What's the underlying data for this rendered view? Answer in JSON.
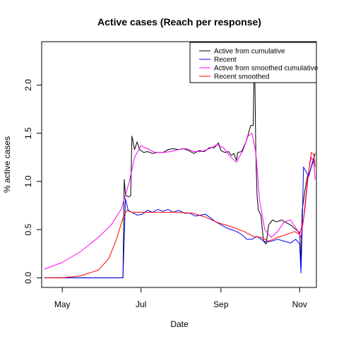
{
  "chart_data": {
    "type": "line",
    "title": "Active cases (Reach per response)",
    "xlabel": "Date",
    "ylabel": "% active cases",
    "x_domain": [
      "2020-04-15",
      "2020-11-14"
    ],
    "ylim": [
      -0.1,
      2.45
    ],
    "x_ticks": [
      {
        "date": "2020-05-01",
        "label": "May"
      },
      {
        "date": "2020-07-01",
        "label": "Jul"
      },
      {
        "date": "2020-09-01",
        "label": "Sep"
      },
      {
        "date": "2020-11-01",
        "label": "Nov"
      }
    ],
    "y_ticks": [
      {
        "value": 0.0,
        "label": "0.0"
      },
      {
        "value": 0.5,
        "label": "0.5"
      },
      {
        "value": 1.0,
        "label": "1.0"
      },
      {
        "value": 1.5,
        "label": "1.5"
      },
      {
        "value": 2.0,
        "label": "2.0"
      }
    ],
    "legend_position": "top-right",
    "grid": false,
    "series": [
      {
        "name": "Active from cumulative",
        "color": "#000000",
        "points": [
          [
            "2020-04-17",
            0.0
          ],
          [
            "2020-06-17",
            0.0
          ],
          [
            "2020-06-18",
            1.02
          ],
          [
            "2020-06-19",
            0.86
          ],
          [
            "2020-06-21",
            0.84
          ],
          [
            "2020-06-23",
            0.85
          ],
          [
            "2020-06-24",
            1.47
          ],
          [
            "2020-06-26",
            1.33
          ],
          [
            "2020-06-28",
            1.41
          ],
          [
            "2020-06-30",
            1.33
          ],
          [
            "2020-07-03",
            1.3
          ],
          [
            "2020-07-06",
            1.31
          ],
          [
            "2020-07-10",
            1.29
          ],
          [
            "2020-07-14",
            1.3
          ],
          [
            "2020-07-18",
            1.3
          ],
          [
            "2020-07-22",
            1.33
          ],
          [
            "2020-07-26",
            1.34
          ],
          [
            "2020-07-30",
            1.33
          ],
          [
            "2020-08-03",
            1.34
          ],
          [
            "2020-08-07",
            1.32
          ],
          [
            "2020-08-11",
            1.29
          ],
          [
            "2020-08-15",
            1.32
          ],
          [
            "2020-08-19",
            1.31
          ],
          [
            "2020-08-23",
            1.35
          ],
          [
            "2020-08-27",
            1.35
          ],
          [
            "2020-08-30",
            1.4
          ],
          [
            "2020-09-01",
            1.32
          ],
          [
            "2020-09-04",
            1.3
          ],
          [
            "2020-09-07",
            1.31
          ],
          [
            "2020-09-09",
            1.27
          ],
          [
            "2020-09-11",
            1.29
          ],
          [
            "2020-09-13",
            1.22
          ],
          [
            "2020-09-14",
            1.3
          ],
          [
            "2020-09-17",
            1.31
          ],
          [
            "2020-09-20",
            1.4
          ],
          [
            "2020-09-22",
            1.48
          ],
          [
            "2020-09-24",
            1.58
          ],
          [
            "2020-09-26",
            1.58
          ],
          [
            "2020-09-27",
            2.4
          ],
          [
            "2020-09-28",
            1.3
          ],
          [
            "2020-09-29",
            0.85
          ],
          [
            "2020-09-30",
            0.7
          ],
          [
            "2020-10-02",
            0.65
          ],
          [
            "2020-10-04",
            0.38
          ],
          [
            "2020-10-06",
            0.35
          ],
          [
            "2020-10-08",
            0.55
          ],
          [
            "2020-10-11",
            0.6
          ],
          [
            "2020-10-14",
            0.58
          ],
          [
            "2020-10-18",
            0.6
          ],
          [
            "2020-10-22",
            0.57
          ],
          [
            "2020-10-26",
            0.54
          ],
          [
            "2020-10-29",
            0.5
          ],
          [
            "2020-11-01",
            0.47
          ],
          [
            "2020-11-02",
            0.15
          ],
          [
            "2020-11-03",
            0.7
          ],
          [
            "2020-11-05",
            0.9
          ],
          [
            "2020-11-07",
            1.05
          ],
          [
            "2020-11-09",
            1.1
          ],
          [
            "2020-11-11",
            1.2
          ],
          [
            "2020-11-13",
            1.29
          ]
        ]
      },
      {
        "name": "Recent",
        "color": "#0000ff",
        "points": [
          [
            "2020-04-17",
            0.0
          ],
          [
            "2020-06-17",
            0.0
          ],
          [
            "2020-06-19",
            0.82
          ],
          [
            "2020-06-21",
            0.7
          ],
          [
            "2020-06-24",
            0.68
          ],
          [
            "2020-06-28",
            0.65
          ],
          [
            "2020-07-02",
            0.66
          ],
          [
            "2020-07-06",
            0.7
          ],
          [
            "2020-07-10",
            0.68
          ],
          [
            "2020-07-14",
            0.71
          ],
          [
            "2020-07-18",
            0.69
          ],
          [
            "2020-07-22",
            0.71
          ],
          [
            "2020-07-26",
            0.68
          ],
          [
            "2020-07-30",
            0.7
          ],
          [
            "2020-08-04",
            0.67
          ],
          [
            "2020-08-08",
            0.67
          ],
          [
            "2020-08-12",
            0.64
          ],
          [
            "2020-08-16",
            0.65
          ],
          [
            "2020-08-20",
            0.66
          ],
          [
            "2020-08-24",
            0.62
          ],
          [
            "2020-08-28",
            0.58
          ],
          [
            "2020-09-01",
            0.55
          ],
          [
            "2020-09-05",
            0.52
          ],
          [
            "2020-09-09",
            0.5
          ],
          [
            "2020-09-13",
            0.48
          ],
          [
            "2020-09-17",
            0.45
          ],
          [
            "2020-09-21",
            0.4
          ],
          [
            "2020-09-25",
            0.4
          ],
          [
            "2020-09-29",
            0.43
          ],
          [
            "2020-10-02",
            0.4
          ],
          [
            "2020-10-06",
            0.37
          ],
          [
            "2020-10-10",
            0.38
          ],
          [
            "2020-10-15",
            0.4
          ],
          [
            "2020-10-20",
            0.38
          ],
          [
            "2020-10-25",
            0.36
          ],
          [
            "2020-10-29",
            0.4
          ],
          [
            "2020-11-01",
            0.35
          ],
          [
            "2020-11-02",
            0.05
          ],
          [
            "2020-11-03",
            0.5
          ],
          [
            "2020-11-04",
            1.15
          ],
          [
            "2020-11-06",
            1.1
          ],
          [
            "2020-11-08",
            1.05
          ],
          [
            "2020-11-10",
            1.15
          ],
          [
            "2020-11-12",
            1.22
          ],
          [
            "2020-11-13",
            1.2
          ]
        ]
      },
      {
        "name": "Active from smoothed cumulative",
        "color": "#ff00ff",
        "points": [
          [
            "2020-04-17",
            0.09
          ],
          [
            "2020-05-01",
            0.16
          ],
          [
            "2020-05-15",
            0.27
          ],
          [
            "2020-05-29",
            0.42
          ],
          [
            "2020-06-08",
            0.55
          ],
          [
            "2020-06-16",
            0.72
          ],
          [
            "2020-06-22",
            1.0
          ],
          [
            "2020-06-26",
            1.25
          ],
          [
            "2020-07-01",
            1.37
          ],
          [
            "2020-07-06",
            1.34
          ],
          [
            "2020-07-12",
            1.3
          ],
          [
            "2020-07-18",
            1.3
          ],
          [
            "2020-07-24",
            1.31
          ],
          [
            "2020-07-30",
            1.33
          ],
          [
            "2020-08-05",
            1.34
          ],
          [
            "2020-08-11",
            1.31
          ],
          [
            "2020-08-17",
            1.31
          ],
          [
            "2020-08-23",
            1.34
          ],
          [
            "2020-08-29",
            1.38
          ],
          [
            "2020-09-03",
            1.35
          ],
          [
            "2020-09-08",
            1.26
          ],
          [
            "2020-09-13",
            1.2
          ],
          [
            "2020-09-18",
            1.32
          ],
          [
            "2020-09-22",
            1.47
          ],
          [
            "2020-09-25",
            1.5
          ],
          [
            "2020-09-28",
            1.3
          ],
          [
            "2020-10-01",
            0.8
          ],
          [
            "2020-10-05",
            0.5
          ],
          [
            "2020-10-10",
            0.42
          ],
          [
            "2020-10-15",
            0.48
          ],
          [
            "2020-10-20",
            0.58
          ],
          [
            "2020-10-25",
            0.6
          ],
          [
            "2020-10-30",
            0.5
          ],
          [
            "2020-11-02",
            0.42
          ],
          [
            "2020-11-05",
            0.7
          ],
          [
            "2020-11-08",
            1.1
          ],
          [
            "2020-11-10",
            1.25
          ],
          [
            "2020-11-12",
            1.2
          ],
          [
            "2020-11-13",
            1.02
          ]
        ]
      },
      {
        "name": "Recent smoothed",
        "color": "#ff0000",
        "points": [
          [
            "2020-04-17",
            0.0
          ],
          [
            "2020-05-01",
            0.0
          ],
          [
            "2020-05-15",
            0.02
          ],
          [
            "2020-05-29",
            0.08
          ],
          [
            "2020-06-06",
            0.2
          ],
          [
            "2020-06-12",
            0.4
          ],
          [
            "2020-06-17",
            0.62
          ],
          [
            "2020-06-20",
            0.7
          ],
          [
            "2020-06-24",
            0.68
          ],
          [
            "2020-07-01",
            0.68
          ],
          [
            "2020-07-10",
            0.68
          ],
          [
            "2020-07-20",
            0.68
          ],
          [
            "2020-07-30",
            0.68
          ],
          [
            "2020-08-10",
            0.67
          ],
          [
            "2020-08-20",
            0.63
          ],
          [
            "2020-08-30",
            0.57
          ],
          [
            "2020-09-09",
            0.53
          ],
          [
            "2020-09-19",
            0.48
          ],
          [
            "2020-09-26",
            0.43
          ],
          [
            "2020-10-02",
            0.42
          ],
          [
            "2020-10-08",
            0.38
          ],
          [
            "2020-10-15",
            0.42
          ],
          [
            "2020-10-22",
            0.45
          ],
          [
            "2020-10-28",
            0.48
          ],
          [
            "2020-11-01",
            0.45
          ],
          [
            "2020-11-04",
            0.6
          ],
          [
            "2020-11-07",
            1.0
          ],
          [
            "2020-11-10",
            1.3
          ],
          [
            "2020-11-12",
            1.28
          ],
          [
            "2020-11-13",
            1.15
          ]
        ]
      }
    ]
  }
}
